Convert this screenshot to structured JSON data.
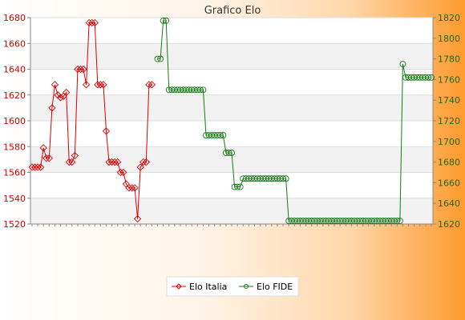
{
  "chart_data": {
    "type": "line",
    "title": "Grafico Elo",
    "y_left": {
      "min": 1520,
      "max": 1680,
      "ticks": [
        1520,
        1540,
        1560,
        1580,
        1600,
        1620,
        1640,
        1660,
        1680
      ]
    },
    "y_right": {
      "min": 1620,
      "max": 1820,
      "ticks": [
        1620,
        1640,
        1660,
        1680,
        1700,
        1720,
        1740,
        1760,
        1780,
        1800,
        1820
      ]
    },
    "x_count": 140,
    "grid": "horizontal-bands",
    "legend_position": "bottom-center",
    "series": [
      {
        "name": "Elo Italia",
        "axis": "left",
        "color": "#dd0000",
        "marker": "diamond",
        "points": [
          [
            0,
            1564
          ],
          [
            1,
            1564
          ],
          [
            2,
            1564
          ],
          [
            3,
            1564
          ],
          [
            4,
            1579
          ],
          [
            5,
            1571
          ],
          [
            6,
            1571
          ],
          [
            7,
            1610
          ],
          [
            8,
            1628
          ],
          [
            9,
            1620
          ],
          [
            10,
            1618
          ],
          [
            11,
            1619
          ],
          [
            12,
            1622
          ],
          [
            13,
            1568
          ],
          [
            14,
            1568
          ],
          [
            15,
            1573
          ],
          [
            16,
            1640
          ],
          [
            17,
            1640
          ],
          [
            18,
            1640
          ],
          [
            19,
            1628
          ],
          [
            20,
            1676
          ],
          [
            21,
            1676
          ],
          [
            22,
            1676
          ],
          [
            23,
            1628
          ],
          [
            24,
            1628
          ],
          [
            25,
            1628
          ],
          [
            26,
            1592
          ],
          [
            27,
            1568
          ],
          [
            28,
            1568
          ],
          [
            29,
            1568
          ],
          [
            30,
            1568
          ],
          [
            31,
            1560
          ],
          [
            32,
            1560
          ],
          [
            33,
            1551
          ],
          [
            34,
            1548
          ],
          [
            35,
            1548
          ],
          [
            36,
            1548
          ],
          [
            37,
            1524
          ],
          [
            38,
            1564
          ],
          [
            39,
            1568
          ],
          [
            40,
            1568
          ],
          [
            41,
            1628
          ],
          [
            42,
            1628
          ]
        ]
      },
      {
        "name": "Elo FIDE",
        "axis": "right",
        "color": "#1a7a1a",
        "marker": "circle",
        "points": [
          [
            44,
            1780
          ],
          [
            45,
            1780
          ],
          [
            46,
            1817
          ],
          [
            47,
            1817
          ],
          [
            48,
            1750
          ],
          [
            49,
            1750
          ],
          [
            50,
            1750
          ],
          [
            51,
            1750
          ],
          [
            52,
            1750
          ],
          [
            53,
            1750
          ],
          [
            54,
            1750
          ],
          [
            55,
            1750
          ],
          [
            56,
            1750
          ],
          [
            57,
            1750
          ],
          [
            58,
            1750
          ],
          [
            59,
            1750
          ],
          [
            60,
            1750
          ],
          [
            61,
            1706
          ],
          [
            62,
            1706
          ],
          [
            63,
            1706
          ],
          [
            64,
            1706
          ],
          [
            65,
            1706
          ],
          [
            66,
            1706
          ],
          [
            67,
            1706
          ],
          [
            68,
            1689
          ],
          [
            69,
            1689
          ],
          [
            70,
            1689
          ],
          [
            71,
            1656
          ],
          [
            72,
            1656
          ],
          [
            73,
            1656
          ],
          [
            74,
            1664
          ],
          [
            75,
            1664
          ],
          [
            76,
            1664
          ],
          [
            77,
            1664
          ],
          [
            78,
            1664
          ],
          [
            79,
            1664
          ],
          [
            80,
            1664
          ],
          [
            81,
            1664
          ],
          [
            82,
            1664
          ],
          [
            83,
            1664
          ],
          [
            84,
            1664
          ],
          [
            85,
            1664
          ],
          [
            86,
            1664
          ],
          [
            87,
            1664
          ],
          [
            88,
            1664
          ],
          [
            89,
            1664
          ],
          [
            90,
            1623
          ],
          [
            91,
            1623
          ],
          [
            92,
            1623
          ],
          [
            93,
            1623
          ],
          [
            94,
            1623
          ],
          [
            95,
            1623
          ],
          [
            96,
            1623
          ],
          [
            97,
            1623
          ],
          [
            98,
            1623
          ],
          [
            99,
            1623
          ],
          [
            100,
            1623
          ],
          [
            101,
            1623
          ],
          [
            102,
            1623
          ],
          [
            103,
            1623
          ],
          [
            104,
            1623
          ],
          [
            105,
            1623
          ],
          [
            106,
            1623
          ],
          [
            107,
            1623
          ],
          [
            108,
            1623
          ],
          [
            109,
            1623
          ],
          [
            110,
            1623
          ],
          [
            111,
            1623
          ],
          [
            112,
            1623
          ],
          [
            113,
            1623
          ],
          [
            114,
            1623
          ],
          [
            115,
            1623
          ],
          [
            116,
            1623
          ],
          [
            117,
            1623
          ],
          [
            118,
            1623
          ],
          [
            119,
            1623
          ],
          [
            120,
            1623
          ],
          [
            121,
            1623
          ],
          [
            122,
            1623
          ],
          [
            123,
            1623
          ],
          [
            124,
            1623
          ],
          [
            125,
            1623
          ],
          [
            126,
            1623
          ],
          [
            127,
            1623
          ],
          [
            128,
            1623
          ],
          [
            129,
            1623
          ],
          [
            130,
            1775
          ],
          [
            131,
            1762
          ],
          [
            132,
            1762
          ],
          [
            133,
            1762
          ],
          [
            134,
            1762
          ],
          [
            135,
            1762
          ],
          [
            136,
            1762
          ],
          [
            137,
            1762
          ],
          [
            138,
            1762
          ],
          [
            139,
            1762
          ],
          [
            140,
            1762
          ]
        ]
      }
    ]
  }
}
